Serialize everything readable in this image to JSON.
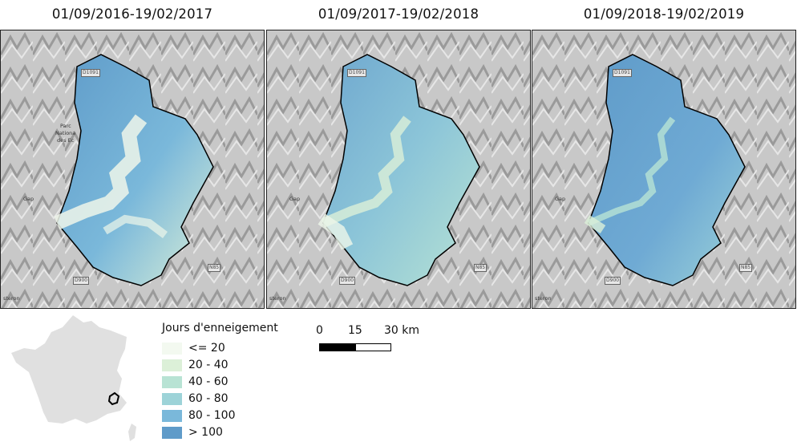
{
  "panels": [
    {
      "title": "01/09/2016-19/02/2017"
    },
    {
      "title": "01/09/2017-19/02/2018"
    },
    {
      "title": "01/09/2018-19/02/2019"
    }
  ],
  "map_labels": {
    "gap": "Gap",
    "sisteron": "steron",
    "road_d1091": "D1091",
    "road_d900": "D900",
    "road_n85": "N85",
    "park_1": "Parc",
    "park_2": "Nationa",
    "park_3": "des Ec"
  },
  "legend": {
    "title": "Jours d'enneigement",
    "items": [
      {
        "label": "<= 20",
        "color": "#f3f9f0"
      },
      {
        "label": "20 - 40",
        "color": "#dcf0d8"
      },
      {
        "label": "40 - 60",
        "color": "#b8e3d4"
      },
      {
        "label": "60 - 80",
        "color": "#9dd3d8"
      },
      {
        "label": "80 - 100",
        "color": "#7ab8da"
      },
      {
        "label": "> 100",
        "color": "#5f9bc9"
      }
    ]
  },
  "scale": {
    "labels": [
      "0",
      "15",
      "30 km"
    ]
  }
}
